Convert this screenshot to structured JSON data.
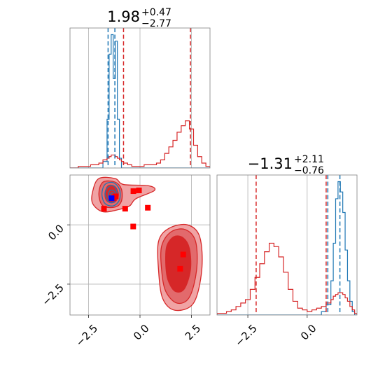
{
  "colors": {
    "blue": "#1f77b4",
    "red": "#d62728",
    "red_fill_light": "#f0a3a4",
    "red_fill_mid": "#e26a6c",
    "red_fill_dark": "#d62728"
  },
  "chart_data": {
    "type": "corner",
    "grid": true,
    "panels": [
      {
        "id": "hist-param1",
        "type": "step-histogram",
        "title": {
          "value": "1.98",
          "upper": "+0.47",
          "lower": "−2.77"
        },
        "xlim": [
          -3.4,
          3.4
        ],
        "bins": [
          -3.4,
          -3.2,
          -3.0,
          -2.8,
          -2.6,
          -2.4,
          -2.2,
          -2.0,
          -1.8,
          -1.6,
          -1.5,
          -1.4,
          -1.3,
          -1.2,
          -1.1,
          -1.0,
          -0.9,
          -0.8,
          -0.6,
          -0.4,
          -0.2,
          0.0,
          0.2,
          0.4,
          0.6,
          0.8,
          1.0,
          1.2,
          1.4,
          1.6,
          1.8,
          2.0,
          2.2,
          2.4,
          2.6,
          2.8,
          3.0,
          3.2,
          3.4
        ],
        "series": [
          {
            "name": "",
            "color": "blue",
            "values": [
              0,
              0,
              0,
              0,
              0,
              0,
              0,
              0,
              0.04,
              0.3,
              0.7,
              0.82,
              0.55,
              0.78,
              0.3,
              0.06,
              0,
              0,
              0,
              0,
              0,
              0,
              0,
              0,
              0,
              0,
              0,
              0,
              0,
              0,
              0,
              0,
              0,
              0,
              0,
              0,
              0,
              0
            ]
          },
          {
            "name": "",
            "color": "red",
            "values": [
              0,
              0,
              0.01,
              0.01,
              0.01,
              0.02,
              0.02,
              0.03,
              0.05,
              0.06,
              0.07,
              0.08,
              0.08,
              0.07,
              0.06,
              0.05,
              0.04,
              0.03,
              0.02,
              0.01,
              0.01,
              0.01,
              0.02,
              0.02,
              0.02,
              0.03,
              0.05,
              0.09,
              0.13,
              0.17,
              0.22,
              0.26,
              0.29,
              0.24,
              0.14,
              0.07,
              0.03,
              0.01
            ]
          }
        ],
        "vlines": [
          {
            "x": -1.55,
            "color": "blue"
          },
          {
            "x": -1.22,
            "color": "blue"
          },
          {
            "x": -0.8,
            "color": "red"
          },
          {
            "x": 2.45,
            "color": "red"
          }
        ]
      },
      {
        "id": "scatter-2d",
        "type": "contour-scatter",
        "xlim": [
          -3.4,
          3.4
        ],
        "ylim": [
          -3.8,
          2.1
        ],
        "xticks": [
          -2.5,
          0.0,
          2.5
        ],
        "xtick_labels": [
          "−2.5",
          "0.0",
          "2.5"
        ],
        "yticks": [
          0.0,
          -2.5
        ],
        "ytick_labels": [
          "0.0",
          "−2.5"
        ],
        "red_regions": [
          {
            "level": "outer",
            "points": [
              [
                -2.3,
                1.4
              ],
              [
                -2.0,
                1.95
              ],
              [
                -1.2,
                1.95
              ],
              [
                -0.8,
                1.7
              ],
              [
                0.4,
                1.65
              ],
              [
                0.7,
                1.45
              ],
              [
                -0.2,
                1.1
              ],
              [
                -0.5,
                0.8
              ],
              [
                -1.0,
                0.65
              ],
              [
                -1.8,
                0.55
              ],
              [
                -2.3,
                0.9
              ]
            ]
          },
          {
            "level": "outer",
            "points": [
              [
                0.9,
                -0.7
              ],
              [
                1.4,
                -0.15
              ],
              [
                2.3,
                0.0
              ],
              [
                2.9,
                -0.5
              ],
              [
                3.0,
                -1.9
              ],
              [
                2.6,
                -3.3
              ],
              [
                1.7,
                -3.6
              ],
              [
                1.1,
                -3.1
              ],
              [
                0.9,
                -1.9
              ]
            ]
          },
          {
            "level": "mid",
            "points": [
              [
                -2.0,
                1.3
              ],
              [
                -1.8,
                1.8
              ],
              [
                -1.2,
                1.8
              ],
              [
                -0.9,
                1.5
              ],
              [
                -0.9,
                1.0
              ],
              [
                -1.2,
                0.75
              ],
              [
                -1.8,
                0.8
              ]
            ]
          },
          {
            "level": "mid",
            "points": [
              [
                1.05,
                -0.9
              ],
              [
                1.5,
                -0.3
              ],
              [
                2.2,
                -0.2
              ],
              [
                2.7,
                -0.7
              ],
              [
                2.75,
                -1.9
              ],
              [
                2.4,
                -3.05
              ],
              [
                1.8,
                -3.3
              ],
              [
                1.25,
                -2.8
              ],
              [
                1.05,
                -1.9
              ]
            ]
          },
          {
            "level": "inner",
            "points": [
              [
                -1.7,
                1.3
              ],
              [
                -1.55,
                1.65
              ],
              [
                -1.2,
                1.6
              ],
              [
                -1.05,
                1.25
              ],
              [
                -1.25,
                0.95
              ],
              [
                -1.6,
                1.0
              ]
            ]
          },
          {
            "level": "inner",
            "points": [
              [
                1.3,
                -0.9
              ],
              [
                1.65,
                -0.5
              ],
              [
                2.1,
                -0.55
              ],
              [
                2.4,
                -1.0
              ],
              [
                2.45,
                -1.9
              ],
              [
                2.15,
                -2.7
              ],
              [
                1.7,
                -2.8
              ],
              [
                1.35,
                -2.3
              ],
              [
                1.25,
                -1.6
              ]
            ]
          }
        ],
        "blue_contours": [
          [
            [
              -1.85,
              1.3
            ],
            [
              -1.7,
              1.7
            ],
            [
              -1.3,
              1.78
            ],
            [
              -1.0,
              1.5
            ],
            [
              -1.0,
              1.05
            ],
            [
              -1.3,
              0.8
            ],
            [
              -1.7,
              0.9
            ]
          ],
          [
            [
              -1.7,
              1.3
            ],
            [
              -1.55,
              1.6
            ],
            [
              -1.25,
              1.62
            ],
            [
              -1.1,
              1.3
            ],
            [
              -1.2,
              1.0
            ],
            [
              -1.5,
              0.95
            ]
          ],
          [
            [
              -1.55,
              1.25
            ],
            [
              -1.45,
              1.45
            ],
            [
              -1.25,
              1.42
            ],
            [
              -1.2,
              1.2
            ],
            [
              -1.35,
              1.05
            ],
            [
              -1.5,
              1.1
            ]
          ],
          [
            [
              -1.45,
              1.2
            ],
            [
              -1.38,
              1.35
            ],
            [
              -1.27,
              1.3
            ],
            [
              -1.28,
              1.15
            ],
            [
              -1.4,
              1.12
            ]
          ]
        ],
        "red_points": [
          [
            -1.75,
            0.68
          ],
          [
            -1.28,
            1.12
          ],
          [
            -1.18,
            1.2
          ],
          [
            -0.72,
            0.68
          ],
          [
            -0.32,
            1.42
          ],
          [
            -0.05,
            1.45
          ],
          [
            0.38,
            0.72
          ],
          [
            -0.33,
            -0.07
          ],
          [
            2.1,
            -1.25
          ],
          [
            1.95,
            -1.85
          ]
        ],
        "blue_points": [
          [
            -1.38,
            1.12
          ]
        ]
      },
      {
        "id": "hist-param2",
        "type": "step-histogram",
        "title": {
          "value": "−1.31",
          "upper": "+2.11",
          "lower": "−0.76"
        },
        "xlim": [
          -3.8,
          2.1
        ],
        "xticks": [
          -2.5,
          0.0
        ],
        "xtick_labels": [
          "−2.5",
          "0.0"
        ],
        "bins": [
          -3.8,
          -3.6,
          -3.4,
          -3.2,
          -3.0,
          -2.8,
          -2.6,
          -2.4,
          -2.2,
          -2.0,
          -1.8,
          -1.6,
          -1.4,
          -1.2,
          -1.0,
          -0.8,
          -0.6,
          -0.4,
          -0.2,
          0.0,
          0.2,
          0.4,
          0.6,
          0.8,
          1.0,
          1.1,
          1.2,
          1.3,
          1.4,
          1.5,
          1.6,
          1.7,
          1.8,
          1.9,
          2.0,
          2.1
        ],
        "series": [
          {
            "name": "",
            "color": "blue",
            "values": [
              0,
              0,
              0,
              0,
              0,
              0,
              0,
              0,
              0,
              0,
              0,
              0,
              0,
              0,
              0,
              0,
              0,
              0,
              0,
              0,
              0,
              0,
              0.02,
              0.06,
              0.2,
              0.42,
              0.68,
              0.78,
              0.72,
              0.6,
              0.38,
              0.2,
              0.08,
              0.02,
              0
            ]
          },
          {
            "name": "",
            "color": "red",
            "values": [
              0.01,
              0.01,
              0.02,
              0.03,
              0.05,
              0.07,
              0.09,
              0.15,
              0.22,
              0.3,
              0.37,
              0.42,
              0.4,
              0.34,
              0.25,
              0.15,
              0.08,
              0.04,
              0.03,
              0.02,
              0.03,
              0.04,
              0.05,
              0.07,
              0.09,
              0.11,
              0.12,
              0.13,
              0.13,
              0.12,
              0.1,
              0.08,
              0.05,
              0.03,
              0.01
            ]
          }
        ],
        "vlines": [
          {
            "x": -2.15,
            "color": "red"
          },
          {
            "x": 0.8,
            "color": "red"
          },
          {
            "x": 0.87,
            "color": "blue"
          },
          {
            "x": 1.38,
            "color": "blue"
          }
        ]
      }
    ]
  }
}
